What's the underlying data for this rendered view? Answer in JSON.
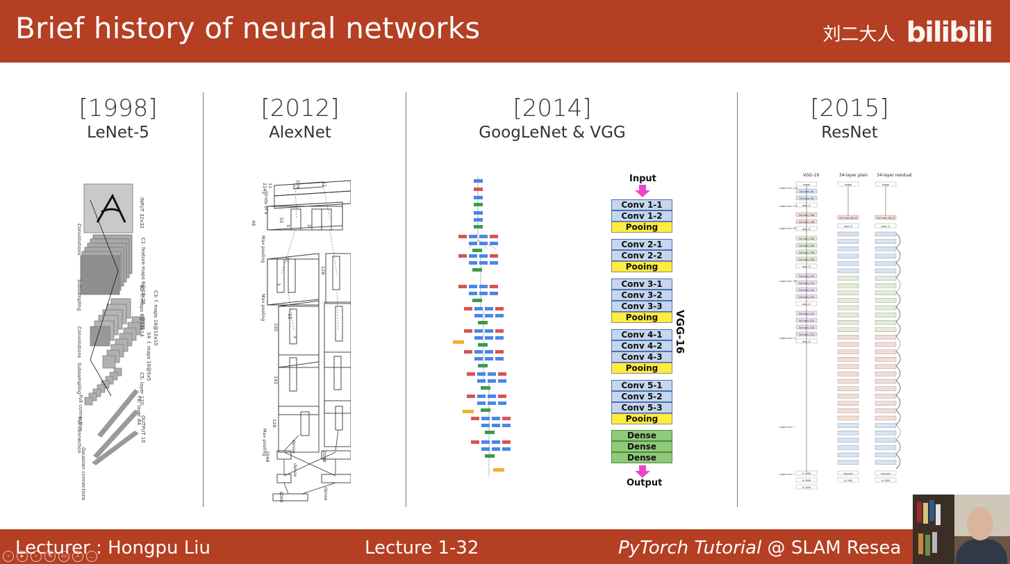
{
  "header": {
    "title": "Brief history of neural networks",
    "author": "刘二大人",
    "site_logo": "bilibili"
  },
  "columns": [
    {
      "year": "[1998]",
      "name": "LeNet-5"
    },
    {
      "year": "[2012]",
      "name": "AlexNet"
    },
    {
      "year": "[2014]",
      "name": "GoogLeNet & VGG"
    },
    {
      "year": "[2015]",
      "name": "ResNet"
    }
  ],
  "lenet": {
    "labels": [
      "INPUT 32x32",
      "C1: feature maps 6@28x28",
      "S2: f. maps 6@14x14",
      "C3: f. maps 16@10x10",
      "S4: f. maps 16@5x5",
      "C5: layer 120",
      "F6: layer 84",
      "OUTPUT 10"
    ],
    "ops": [
      "Convolutions",
      "Subsampling",
      "Convolutions",
      "Subsampling",
      "Full connection",
      "Full connection",
      "Gaussian connections"
    ]
  },
  "alexnet": {
    "labels": [
      "224",
      "224",
      "11",
      "11",
      "3",
      "Stride of 4",
      "48",
      "55",
      "5",
      "5",
      "Max pooling",
      "27",
      "128",
      "3",
      "Max pooling",
      "192",
      "13",
      "3",
      "192",
      "128",
      "Max pooling",
      "dense",
      "2048",
      "2048",
      "dense",
      "1000",
      "dense"
    ]
  },
  "vgg": {
    "input": "Input",
    "output": "Output",
    "side_label": "VGG-16",
    "blocks": [
      [
        "Conv 1-1",
        "Conv 1-2",
        "Pooing"
      ],
      [
        "Conv 2-1",
        "Conv 2-2",
        "Pooing"
      ],
      [
        "Conv 3-1",
        "Conv 3-2",
        "Conv 3-3",
        "Pooing"
      ],
      [
        "Conv 4-1",
        "Conv 4-2",
        "Conv 4-3",
        "Pooing"
      ],
      [
        "Conv 5-1",
        "Conv 5-2",
        "Conv 5-3",
        "Pooing"
      ],
      [
        "Dense",
        "Dense",
        "Dense"
      ]
    ]
  },
  "resnet": {
    "headers": [
      "VGG-19",
      "34-layer plain",
      "34-layer residual"
    ],
    "top": "image",
    "vgg_layers": [
      "3x3 conv, 64",
      "3x3 conv, 64",
      "pool, /2",
      "3x3 conv, 128",
      "3x3 conv, 128",
      "pool, /2",
      "3x3 conv, 256",
      "3x3 conv, 256",
      "3x3 conv, 256",
      "3x3 conv, 256",
      "pool, /2",
      "3x3 conv, 512",
      "3x3 conv, 512",
      "3x3 conv, 512",
      "3x3 conv, 512",
      "pool, /2",
      "3x3 conv, 512",
      "3x3 conv, 512",
      "3x3 conv, 512",
      "3x3 conv, 512",
      "pool, /2",
      "fc 4096",
      "fc 4096",
      "fc 1000"
    ],
    "first_conv": "7x7 conv, 64, /2",
    "end_pool": "avg pool",
    "end_fc": "fc 1000",
    "output_sizes": [
      "output size: 224",
      "output size: 112",
      "output size: 56",
      "output size: 28",
      "output size: 14",
      "output size: 7",
      "output size: 1"
    ]
  },
  "footer": {
    "lecturer": "Lecturer : Hongpu Liu",
    "lecture": "Lecture 1-32",
    "tutorial_italic": "PyTorch Tutorial",
    "tutorial_rest": " @ SLAM Resea"
  },
  "colors": {
    "accent": "#b43f22",
    "vgg_conv": "#c5d6ee",
    "vgg_pool": "#ffec3d",
    "vgg_dense": "#8fc97a",
    "arrow": "#ee44cc"
  }
}
